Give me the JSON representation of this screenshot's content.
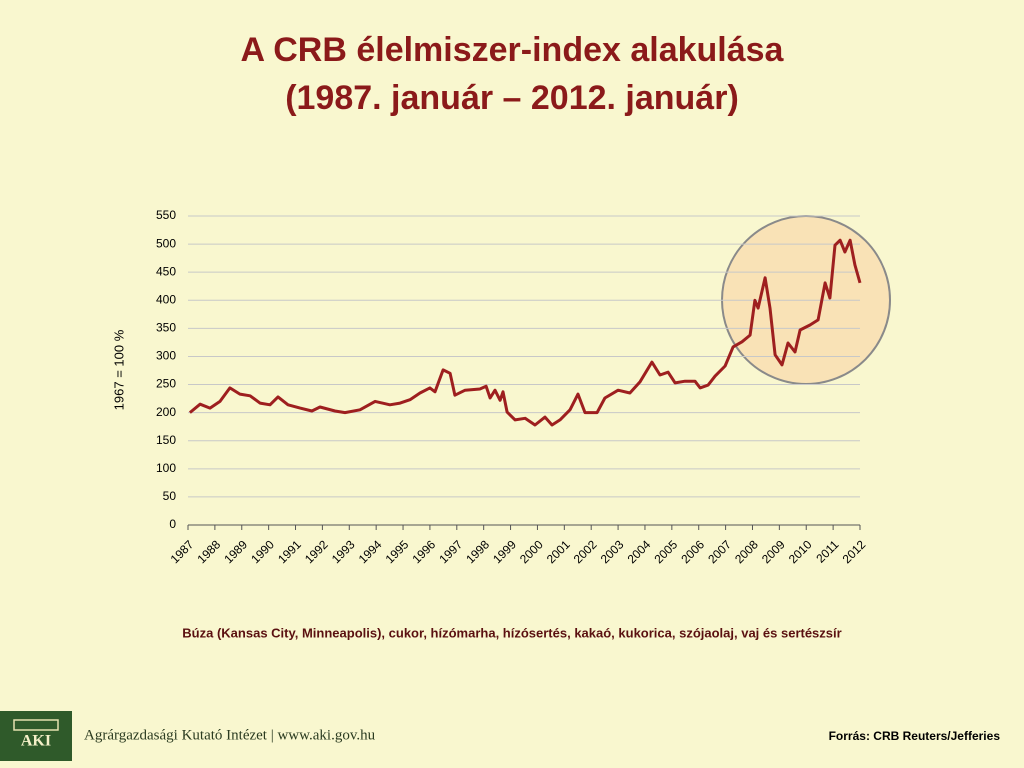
{
  "chart_data": {
    "type": "line",
    "title": "A CRB élelmiszer-index alakulása",
    "subtitle": "(1987. január – 2012. január)",
    "y_label": "1967 = 100 %",
    "color": "#9e1f1f",
    "grid": true,
    "xlim": [
      1987,
      2012
    ],
    "xticks": [
      1987,
      1988,
      1989,
      1990,
      1991,
      1992,
      1993,
      1994,
      1995,
      1996,
      1997,
      1998,
      1999,
      2000,
      2001,
      2002,
      2003,
      2004,
      2005,
      2006,
      2007,
      2008,
      2009,
      2010,
      2011,
      2012
    ],
    "ylim": [
      0,
      550
    ],
    "yticks": [
      0,
      50,
      100,
      150,
      200,
      250,
      300,
      350,
      400,
      450,
      500,
      550
    ],
    "x": [
      1987.07,
      1987.45,
      1987.82,
      1988.19,
      1988.56,
      1988.93,
      1989.31,
      1989.68,
      1990.05,
      1990.35,
      1990.72,
      1991.17,
      1991.61,
      1991.91,
      1992.47,
      1992.84,
      1993.4,
      1993.96,
      1994.51,
      1994.89,
      1995.26,
      1995.63,
      1996.0,
      1996.19,
      1996.49,
      1996.75,
      1996.93,
      1997.31,
      1997.86,
      1998.09,
      1998.24,
      1998.42,
      1998.61,
      1998.72,
      1998.87,
      1999.17,
      1999.54,
      1999.91,
      2000.28,
      2000.54,
      2000.84,
      2001.21,
      2001.51,
      2001.77,
      2002.22,
      2002.51,
      2003.0,
      2003.44,
      2003.82,
      2004.26,
      2004.56,
      2004.86,
      2005.12,
      2005.49,
      2005.86,
      2006.05,
      2006.35,
      2006.61,
      2006.98,
      2007.28,
      2007.61,
      2007.91,
      2008.09,
      2008.21,
      2008.47,
      2008.65,
      2008.84,
      2009.1,
      2009.32,
      2009.58,
      2009.77,
      2010.14,
      2010.44,
      2010.7,
      2010.88,
      2011.07,
      2011.26,
      2011.44,
      2011.63,
      2011.81,
      2012.0
    ],
    "values": [
      200,
      215,
      208,
      220,
      244,
      233,
      230,
      217,
      214,
      228,
      214,
      208,
      203,
      210,
      203,
      200,
      205,
      220,
      214,
      217,
      223,
      235,
      244,
      237,
      276,
      270,
      231,
      240,
      242,
      247,
      226,
      240,
      222,
      237,
      201,
      187,
      190,
      178,
      192,
      178,
      187,
      205,
      233,
      200,
      200,
      226,
      240,
      235,
      255,
      290,
      267,
      272,
      253,
      256,
      256,
      244,
      249,
      265,
      283,
      317,
      326,
      338,
      400,
      386,
      440,
      386,
      303,
      285,
      324,
      308,
      347,
      356,
      365,
      431,
      404,
      498,
      507,
      486,
      507,
      463,
      431
    ]
  },
  "note": "Búza (Kansas City, Minneapolis), cukor, hízómarha, hízósertés, kakaó, kukorica, szójaolaj, vaj és sertészsír",
  "footer": {
    "logo": "AKI",
    "institute": "Agrárgazdasági Kutató Intézet | www.aki.gov.hu",
    "source": "Forrás: CRB Reuters/Jefferies"
  }
}
